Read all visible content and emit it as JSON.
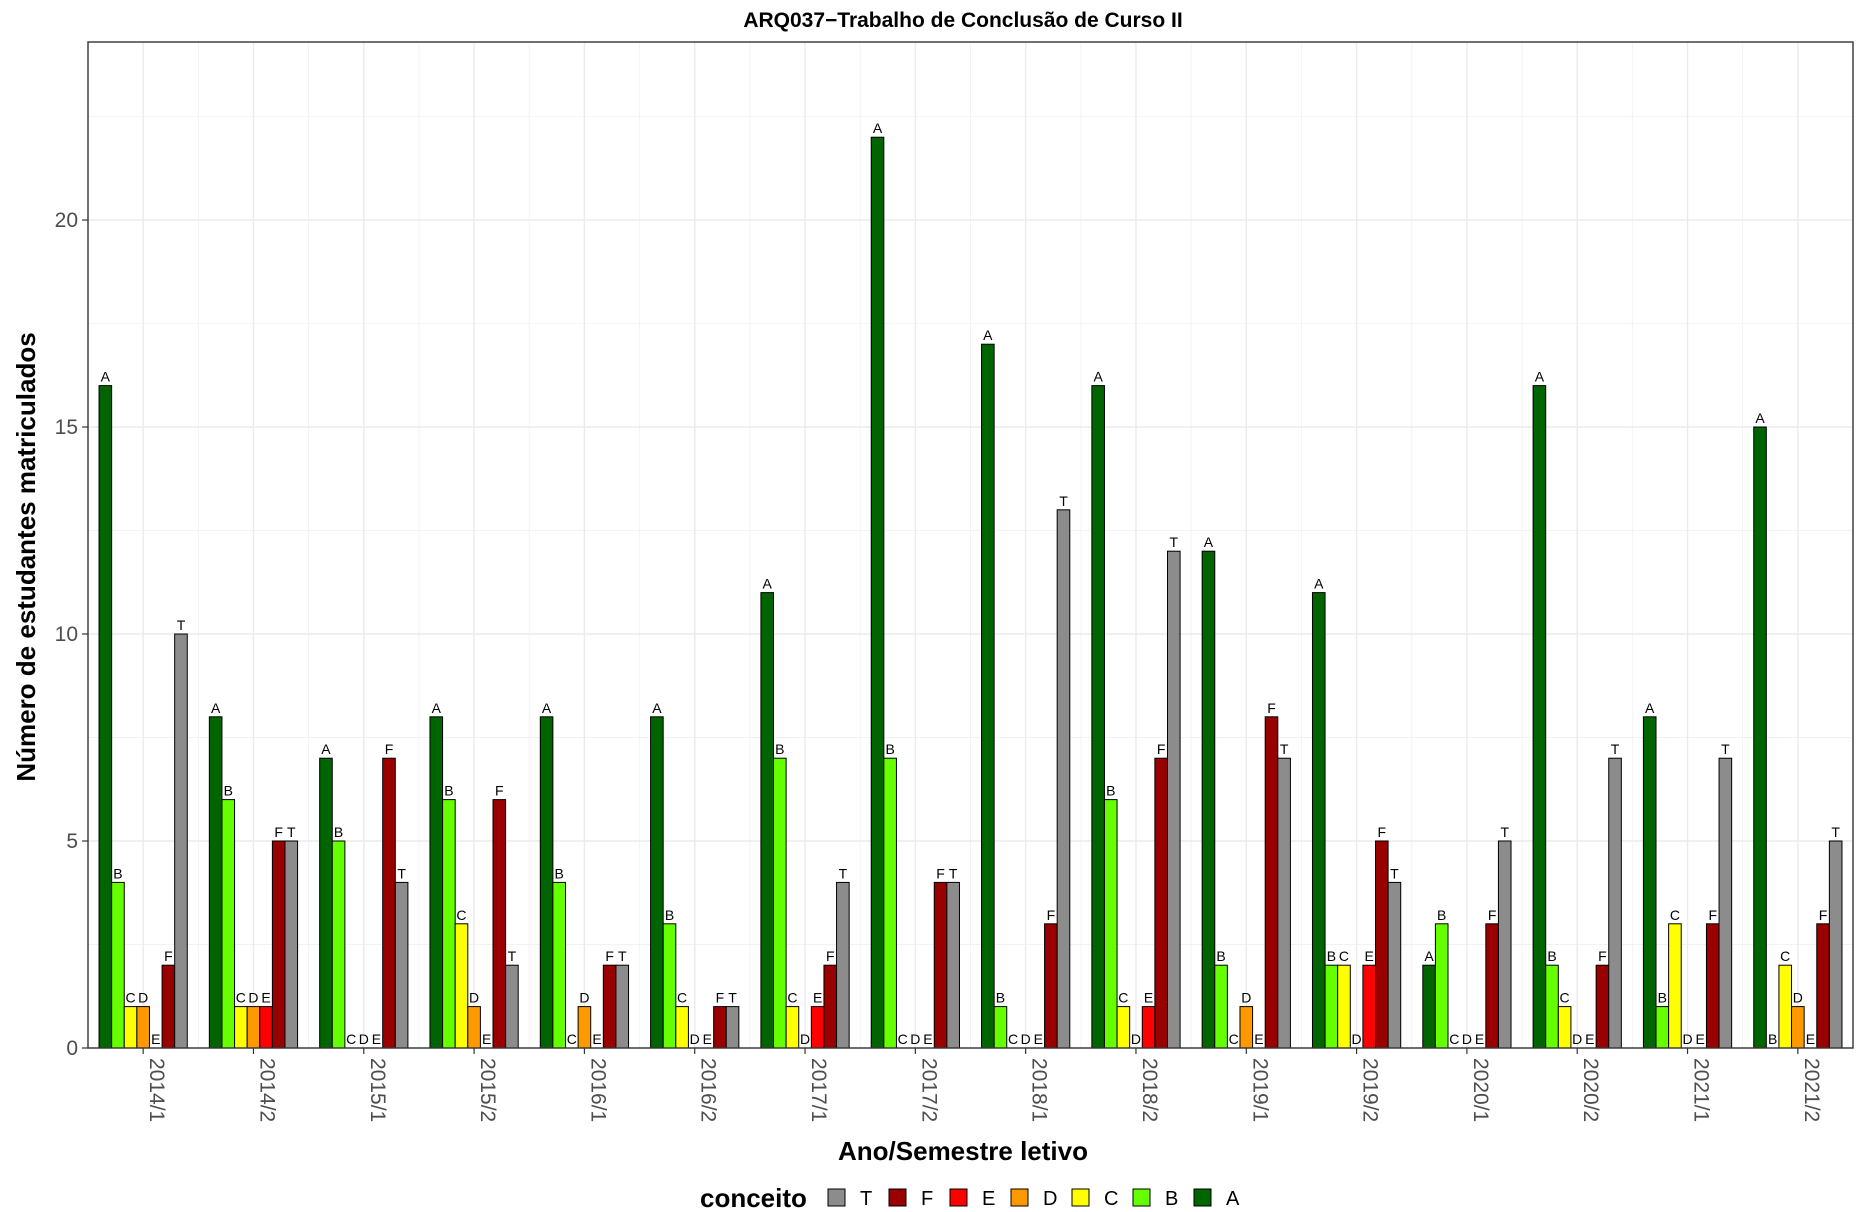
{
  "chart_data": {
    "type": "bar",
    "title": "ARQ037−Trabalho de Conclusão de Curso II",
    "xlabel": "Ano/Semestre letivo",
    "ylabel": "Número de estudantes matriculados",
    "ylim": [
      0,
      24.3
    ],
    "y_ticks": [
      0,
      5,
      10,
      15,
      20
    ],
    "y_tick_labels": [
      "0",
      "5",
      "10",
      "15",
      "20"
    ],
    "grid": true,
    "legend_position": "bottom",
    "legend_title": "conceito",
    "legend_order": [
      "T",
      "F",
      "E",
      "D",
      "C",
      "B",
      "A"
    ],
    "categories": [
      "2014/1",
      "2014/2",
      "2015/1",
      "2015/2",
      "2016/1",
      "2016/2",
      "2017/1",
      "2017/2",
      "2018/1",
      "2018/2",
      "2019/1",
      "2019/2",
      "2020/1",
      "2020/2",
      "2021/1",
      "2021/2"
    ],
    "series": [
      {
        "name": "A",
        "color": "#006400",
        "values": [
          16,
          8,
          7,
          8,
          8,
          8,
          11,
          22,
          17,
          16,
          12,
          11,
          2,
          16,
          8,
          15
        ]
      },
      {
        "name": "B",
        "color": "#66FF00",
        "values": [
          4,
          6,
          5,
          6,
          4,
          3,
          7,
          7,
          1,
          6,
          2,
          2,
          3,
          2,
          1,
          0
        ]
      },
      {
        "name": "C",
        "color": "#FFFF00",
        "values": [
          1,
          1,
          0,
          3,
          0,
          1,
          1,
          0,
          0,
          1,
          0,
          2,
          0,
          1,
          3,
          2
        ]
      },
      {
        "name": "D",
        "color": "#FF9900",
        "values": [
          1,
          1,
          0,
          1,
          1,
          0,
          0,
          0,
          0,
          0,
          1,
          0,
          0,
          0,
          0,
          1
        ]
      },
      {
        "name": "E",
        "color": "#FF0000",
        "values": [
          0,
          1,
          0,
          0,
          0,
          0,
          1,
          0,
          0,
          1,
          0,
          2,
          0,
          0,
          0,
          0
        ]
      },
      {
        "name": "F",
        "color": "#990000",
        "values": [
          2,
          5,
          7,
          6,
          2,
          1,
          2,
          4,
          3,
          7,
          8,
          5,
          3,
          2,
          3,
          3
        ]
      },
      {
        "name": "T",
        "color": "#8C8C8C",
        "values": [
          10,
          5,
          4,
          2,
          2,
          1,
          4,
          4,
          13,
          12,
          7,
          4,
          5,
          7,
          7,
          5
        ]
      }
    ]
  }
}
